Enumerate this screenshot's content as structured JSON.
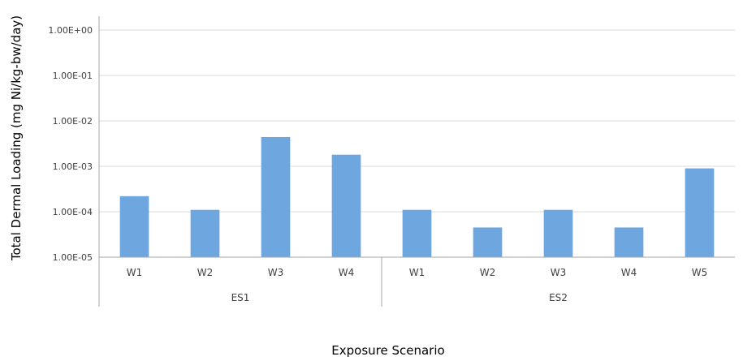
{
  "colors": {
    "bar": "#6ea6e0",
    "gridline": "#d9d9d9",
    "axis": "#a6a6a6",
    "text": "#404040"
  },
  "chart_data": {
    "type": "bar",
    "title": "",
    "xlabel": "Exposure Scenario",
    "ylabel": "Total Dermal Loading (mg Ni/kg-bw/day)",
    "yscale": "log",
    "ylim": [
      1e-05,
      1
    ],
    "yticks": [
      1e-05,
      0.0001,
      0.001,
      0.01,
      0.1,
      1
    ],
    "ytick_labels": [
      "1.00E-05",
      "1.00E-04",
      "1.00E-03",
      "1.00E-02",
      "1.00E-01",
      "1.00E+00"
    ],
    "grid": true,
    "legend": "none",
    "groups": [
      {
        "label": "ES1",
        "categories": [
          "W1",
          "W2",
          "W3",
          "W4"
        ],
        "values": [
          0.00022,
          0.00011,
          0.0044,
          0.0018
        ]
      },
      {
        "label": "ES2",
        "categories": [
          "W1",
          "W2",
          "W3",
          "W4",
          "W5"
        ],
        "values": [
          0.00011,
          4.5e-05,
          0.00011,
          4.5e-05,
          0.0009
        ]
      }
    ]
  }
}
